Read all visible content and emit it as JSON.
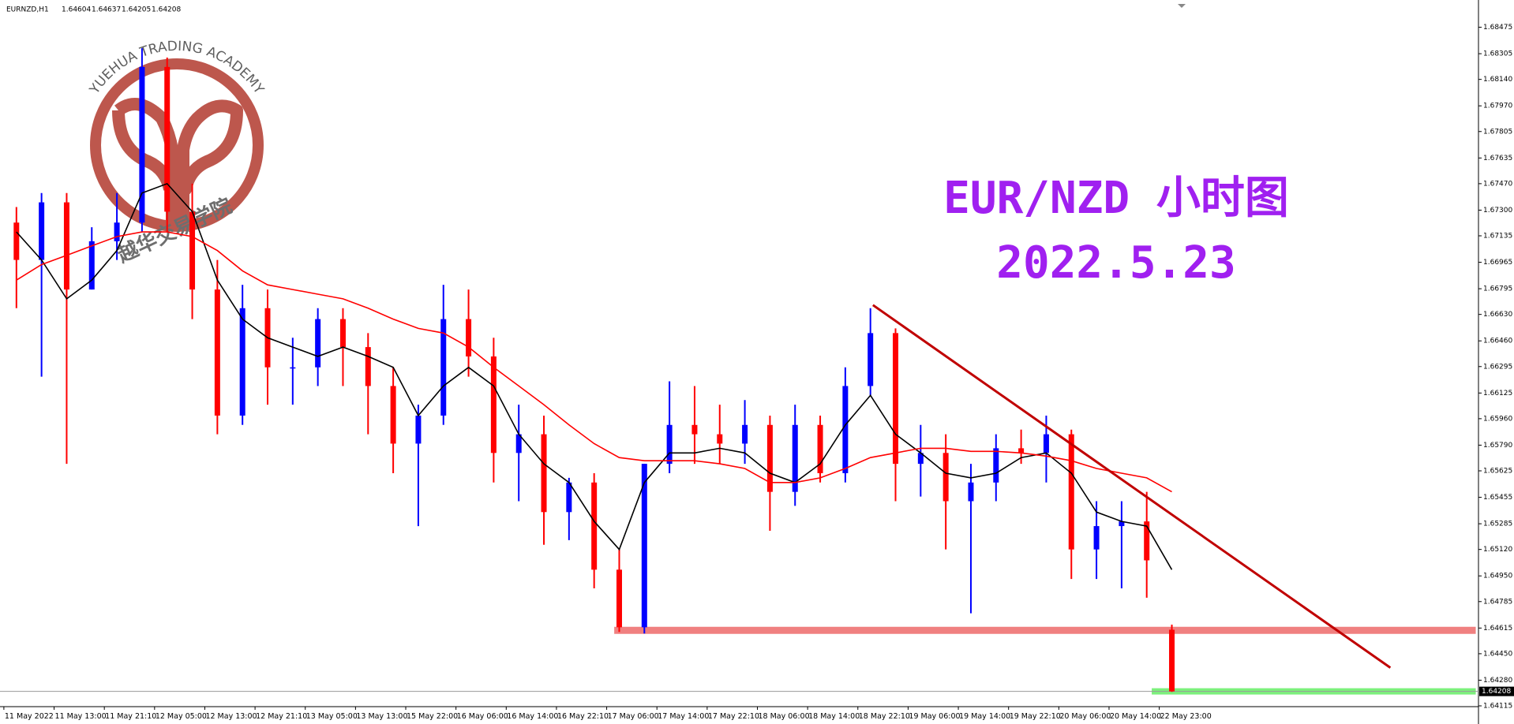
{
  "header": {
    "symbol": "EURNZD,H1"
  },
  "chart_data": {
    "type": "candlestick",
    "title": "EUR/NZD 小时图",
    "subtitle": "2022.5.23",
    "watermark": {
      "arc_text": "YUEHUA TRADING ACADEMY",
      "text": "越华交易学院"
    },
    "up_color": "#0000ff",
    "down_color": "#ff0000",
    "candles": {
      "open": [
        1.6722,
        1.6698,
        1.6735,
        1.6679,
        1.671,
        1.6722,
        1.6822,
        1.6729,
        1.6679,
        1.6598,
        1.6667,
        1.6629,
        1.6629,
        1.666,
        1.6642,
        1.6617,
        1.658,
        1.6598,
        1.666,
        1.6636,
        1.6574,
        1.6586,
        1.6536,
        1.6555,
        1.6499,
        1.6462,
        1.6567,
        1.6592,
        1.6586,
        1.658,
        1.6592,
        1.6549,
        1.6592,
        1.6561,
        1.6617,
        1.6651,
        1.6567,
        1.6574,
        1.6543,
        1.6555,
        1.6577,
        1.6574,
        1.6586,
        1.6512,
        1.6527,
        1.653,
        1.64604
      ],
      "high": [
        1.6732,
        1.6741,
        1.6741,
        1.6719,
        1.6741,
        1.6834,
        1.6828,
        1.6747,
        1.6698,
        1.6682,
        1.6679,
        1.6648,
        1.6667,
        1.6667,
        1.6651,
        1.6629,
        1.6605,
        1.6682,
        1.6679,
        1.6648,
        1.6605,
        1.6598,
        1.6558,
        1.6561,
        1.6512,
        1.6567,
        1.662,
        1.6617,
        1.6605,
        1.6608,
        1.6598,
        1.6605,
        1.6598,
        1.6629,
        1.6667,
        1.6654,
        1.6592,
        1.6586,
        1.6567,
        1.6586,
        1.6589,
        1.6598,
        1.6589,
        1.6543,
        1.6543,
        1.6549,
        1.64637
      ],
      "low": [
        1.6667,
        1.6623,
        1.6567,
        1.6679,
        1.6698,
        1.6716,
        1.6716,
        1.666,
        1.6586,
        1.6592,
        1.6605,
        1.6605,
        1.6617,
        1.6617,
        1.6586,
        1.6561,
        1.6527,
        1.6592,
        1.6623,
        1.6555,
        1.6543,
        1.6515,
        1.6518,
        1.6487,
        1.6459,
        1.6458,
        1.6561,
        1.6567,
        1.6567,
        1.6567,
        1.6524,
        1.654,
        1.6555,
        1.6555,
        1.6611,
        1.6543,
        1.6546,
        1.6512,
        1.6471,
        1.6543,
        1.6567,
        1.6555,
        1.6493,
        1.6493,
        1.6487,
        1.6481,
        1.64205
      ],
      "close": [
        1.6698,
        1.6735,
        1.6679,
        1.671,
        1.6722,
        1.6822,
        1.6729,
        1.6679,
        1.6598,
        1.6667,
        1.6629,
        1.6629,
        1.666,
        1.6642,
        1.6617,
        1.658,
        1.6598,
        1.666,
        1.6636,
        1.6574,
        1.6586,
        1.6536,
        1.6555,
        1.6499,
        1.6462,
        1.6567,
        1.6592,
        1.6586,
        1.658,
        1.6592,
        1.6549,
        1.6592,
        1.6561,
        1.6617,
        1.6651,
        1.6567,
        1.6574,
        1.6543,
        1.6555,
        1.6577,
        1.6574,
        1.6586,
        1.6512,
        1.6527,
        1.653,
        1.6505,
        1.64208
      ]
    },
    "lines": [
      {
        "color": "#000000",
        "values": [
          1.6716,
          1.6698,
          1.6673,
          1.6685,
          1.6704,
          1.6741,
          1.6747,
          1.6729,
          1.6685,
          1.666,
          1.6648,
          1.6642,
          1.6636,
          1.6642,
          1.6636,
          1.6629,
          1.6598,
          1.6617,
          1.6629,
          1.6617,
          1.6586,
          1.6567,
          1.6555,
          1.653,
          1.6512,
          1.6555,
          1.6574,
          1.6574,
          1.6577,
          1.6574,
          1.6561,
          1.6555,
          1.6567,
          1.6592,
          1.6611,
          1.6586,
          1.6574,
          1.6561,
          1.6558,
          1.6561,
          1.6571,
          1.6574,
          1.6561,
          1.6536,
          1.653,
          1.6527,
          1.6499
        ]
      },
      {
        "color": "#ff0000",
        "values": [
          1.6685,
          1.6695,
          1.6701,
          1.6707,
          1.6713,
          1.6716,
          1.6716,
          1.6713,
          1.6704,
          1.6691,
          1.6682,
          1.6679,
          1.6676,
          1.6673,
          1.6667,
          1.666,
          1.6654,
          1.6651,
          1.6642,
          1.6629,
          1.6617,
          1.6605,
          1.6592,
          1.658,
          1.6571,
          1.6569,
          1.6569,
          1.6569,
          1.6567,
          1.6564,
          1.6555,
          1.6555,
          1.6558,
          1.6564,
          1.6571,
          1.6574,
          1.6577,
          1.6577,
          1.6575,
          1.6575,
          1.6574,
          1.6572,
          1.6569,
          1.6564,
          1.6561,
          1.6558,
          1.6549
        ]
      }
    ],
    "levels": [
      {
        "color": "#c00000",
        "x": [
          34.6,
          55.2
        ],
        "values": [
          1.6669,
          1.6436
        ]
      },
      {
        "color": "#f08080",
        "x": [
          24.3,
          58.6
        ],
        "values": [
          1.646,
          1.646
        ]
      },
      {
        "color": "#7cf07c",
        "x": [
          45.7,
          58.6
        ],
        "values": [
          1.64208,
          1.64208
        ]
      }
    ],
    "ylim": [
      1.6411,
      1.6865
    ],
    "yticks": [
      1.68475,
      1.68305,
      {
        "value": 1.6814,
        "label": "1.68140"
      },
      {
        "value": 1.6797,
        "label": "1.67970"
      },
      1.67805,
      1.67635,
      {
        "value": 1.6747,
        "label": "1.67470"
      },
      {
        "value": 1.673,
        "label": "1.67300"
      },
      1.67135,
      1.66965,
      1.66795,
      {
        "value": 1.6663,
        "label": "1.66630"
      },
      {
        "value": 1.6646,
        "label": "1.66460"
      },
      1.66295,
      1.66125,
      {
        "value": 1.6596,
        "label": "1.65960"
      },
      {
        "value": 1.6579,
        "label": "1.65790"
      },
      1.65625,
      1.65455,
      1.65285,
      {
        "value": 1.6512,
        "label": "1.65120"
      },
      {
        "value": 1.6495,
        "label": "1.64950"
      },
      1.64785,
      1.64615,
      {
        "value": 1.6445,
        "label": "1.64450"
      },
      {
        "value": 1.6428,
        "label": "1.64280"
      },
      1.64115
    ],
    "xtick_labels": [
      "11 May 2022",
      "11 May 13:00",
      "11 May 21:10",
      "12 May 05:00",
      "12 May 13:00",
      "12 May 21:10",
      "13 May 05:00",
      "13 May 13:00",
      "15 May 22:00",
      "16 May 06:00",
      "16 May 14:00",
      "16 May 22:10",
      "17 May 06:00",
      "17 May 14:00",
      "17 May 22:10",
      "18 May 06:00",
      "18 May 14:00",
      "18 May 22:10",
      "19 May 06:00",
      "19 May 14:00",
      "19 May 22:10",
      "20 May 06:00",
      "20 May 14:00",
      "22 May 23:00"
    ]
  }
}
